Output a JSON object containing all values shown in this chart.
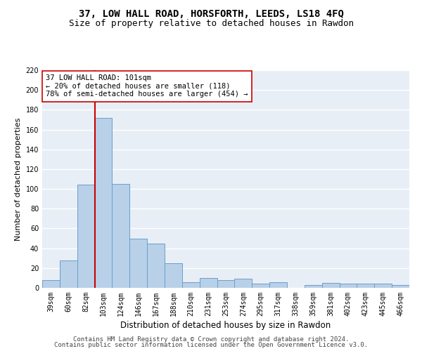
{
  "title1": "37, LOW HALL ROAD, HORSFORTH, LEEDS, LS18 4FQ",
  "title2": "Size of property relative to detached houses in Rawdon",
  "xlabel": "Distribution of detached houses by size in Rawdon",
  "ylabel": "Number of detached properties",
  "categories": [
    "39sqm",
    "60sqm",
    "82sqm",
    "103sqm",
    "124sqm",
    "146sqm",
    "167sqm",
    "188sqm",
    "210sqm",
    "231sqm",
    "253sqm",
    "274sqm",
    "295sqm",
    "317sqm",
    "338sqm",
    "359sqm",
    "381sqm",
    "402sqm",
    "423sqm",
    "445sqm",
    "466sqm"
  ],
  "values": [
    8,
    28,
    104,
    172,
    105,
    50,
    45,
    25,
    6,
    10,
    8,
    9,
    4,
    6,
    0,
    3,
    5,
    4,
    4,
    4,
    3
  ],
  "bar_color": "#b8d0e8",
  "bar_edge_color": "#6aa0cc",
  "vline_x_index": 2.5,
  "vline_color": "#cc0000",
  "annotation_text": "37 LOW HALL ROAD: 101sqm\n← 20% of detached houses are smaller (118)\n78% of semi-detached houses are larger (454) →",
  "annotation_box_color": "white",
  "annotation_box_edge": "#cc0000",
  "ylim": [
    0,
    220
  ],
  "yticks": [
    0,
    20,
    40,
    60,
    80,
    100,
    120,
    140,
    160,
    180,
    200,
    220
  ],
  "footer1": "Contains HM Land Registry data © Crown copyright and database right 2024.",
  "footer2": "Contains public sector information licensed under the Open Government Licence v3.0.",
  "bg_color": "#e8eef5",
  "grid_color": "#ffffff",
  "title1_fontsize": 10,
  "title2_fontsize": 9,
  "xlabel_fontsize": 8.5,
  "ylabel_fontsize": 8,
  "tick_fontsize": 7,
  "annot_fontsize": 7.5,
  "footer_fontsize": 6.5
}
